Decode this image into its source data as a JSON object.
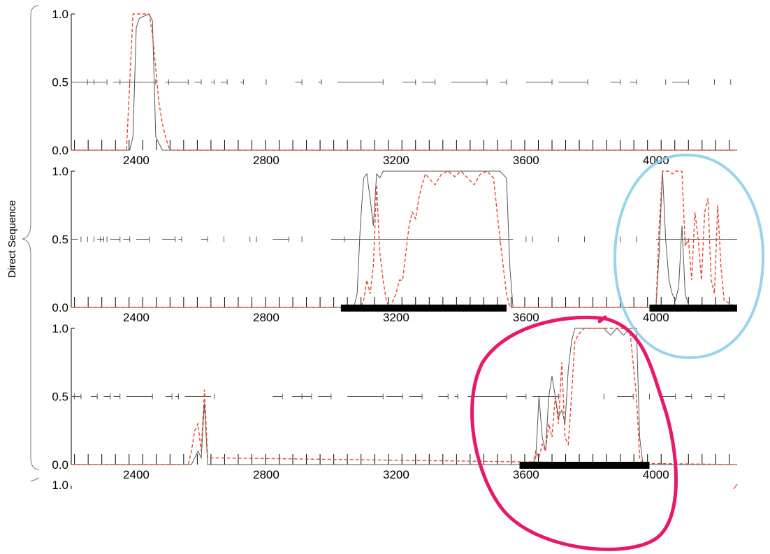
{
  "group_label": "Direct Sequence",
  "annotation_colors": {
    "blue_circle": "#87cdea",
    "pink_circle": "#e8186a"
  },
  "chart_data": [
    {
      "type": "line",
      "xlim": [
        2200,
        4250
      ],
      "ylim": [
        0,
        1
      ],
      "x_ticks": [
        2400,
        2800,
        3200,
        3600,
        4000
      ],
      "y_ticks": [
        0.0,
        0.5,
        1.0
      ],
      "y_tick_labels": [
        "0.0",
        "0.5",
        "1.0"
      ],
      "grid": false,
      "series": [
        {
          "style": "solid",
          "color": "#555555",
          "x": [
            2200,
            2380,
            2390,
            2400,
            2410,
            2420,
            2440,
            2450,
            2460,
            2480,
            4250
          ],
          "y": [
            0,
            0,
            0.1,
            0.9,
            0.97,
            0.98,
            1.0,
            0.95,
            0.1,
            0,
            0
          ]
        },
        {
          "style": "dashed",
          "color": "#e34a33",
          "x": [
            2200,
            2370,
            2380,
            2390,
            2400,
            2420,
            2440,
            2450,
            2460,
            2470,
            2480,
            2490,
            2500,
            2510,
            4250
          ],
          "y": [
            0,
            0,
            0.5,
            1.0,
            1.0,
            1.0,
            1.0,
            0.85,
            0.6,
            0.35,
            0.2,
            0.1,
            0.02,
            0,
            0
          ]
        }
      ],
      "segments": [
        [
          2200,
          2310
        ],
        [
          2330,
          2460
        ],
        [
          2490,
          2560
        ],
        [
          2580,
          2600
        ],
        [
          2630,
          2640
        ],
        [
          2660,
          2680
        ],
        [
          2720,
          2730
        ],
        [
          2890,
          2910
        ],
        [
          2960,
          2970
        ],
        [
          3020,
          3160
        ],
        [
          3220,
          3260
        ],
        [
          3280,
          3320
        ],
        [
          3370,
          3480
        ],
        [
          3520,
          3540
        ],
        [
          3600,
          3680
        ],
        [
          3700,
          3790
        ],
        [
          3860,
          3890
        ],
        [
          3920,
          3940
        ],
        [
          4050,
          4100
        ]
      ],
      "ticks_at": [
        2250,
        2270,
        2310,
        2350,
        2380,
        2460,
        2500,
        2560,
        2600,
        2640,
        2680,
        2730,
        2800,
        2910,
        2970,
        3160,
        3260,
        3320,
        3480,
        3540,
        3680,
        3790,
        3890,
        3940,
        4030,
        4100,
        4180,
        4230
      ],
      "bars": []
    },
    {
      "type": "line",
      "xlim": [
        2200,
        4250
      ],
      "ylim": [
        0,
        1
      ],
      "x_ticks": [
        2400,
        2800,
        3200,
        3600,
        4000
      ],
      "y_ticks": [
        0.0,
        0.5,
        1.0
      ],
      "y_tick_labels": [
        "0.0",
        "0.5",
        "1.0"
      ],
      "grid": false,
      "series": [
        {
          "style": "solid",
          "color": "#555555",
          "x": [
            2200,
            3070,
            3080,
            3090,
            3100,
            3110,
            3120,
            3130,
            3140,
            3150,
            3160,
            3180,
            3200,
            3250,
            3300,
            3350,
            3400,
            3450,
            3500,
            3520,
            3540,
            3550,
            3560,
            4000,
            4010,
            4020,
            4030,
            4040,
            4050,
            4060,
            4070,
            4080,
            4090,
            4100,
            4110,
            4250
          ],
          "y": [
            0,
            0,
            0.1,
            0.6,
            0.95,
            0.98,
            0.8,
            0.6,
            0.98,
            0.95,
            1.0,
            1.0,
            1.0,
            1.0,
            1.0,
            1.0,
            1.0,
            1.0,
            1.0,
            1.0,
            0.95,
            0.3,
            0,
            0,
            0.4,
            1.0,
            0.5,
            0.2,
            0.1,
            0.05,
            0.15,
            0.6,
            0.1,
            0.02,
            0,
            0
          ]
        },
        {
          "style": "dashed",
          "color": "#e34a33",
          "x": [
            2200,
            3090,
            3100,
            3110,
            3120,
            3130,
            3140,
            3150,
            3160,
            3170,
            3180,
            3200,
            3210,
            3220,
            3240,
            3250,
            3260,
            3270,
            3280,
            3290,
            3300,
            3320,
            3340,
            3360,
            3380,
            3400,
            3420,
            3440,
            3460,
            3480,
            3500,
            3520,
            3540,
            3550,
            3560,
            4000,
            4010,
            4020,
            4040,
            4050,
            4060,
            4080,
            4090,
            4100,
            4110,
            4120,
            4130,
            4140,
            4150,
            4160,
            4170,
            4180,
            4190,
            4200,
            4210,
            4250
          ],
          "y": [
            0,
            0,
            0.05,
            0.2,
            0.1,
            0.3,
            0.9,
            0.4,
            0.2,
            0.05,
            0,
            0.1,
            0.2,
            0.2,
            0.6,
            0.7,
            0.65,
            0.8,
            0.9,
            0.98,
            0.95,
            0.9,
            0.98,
            1.0,
            0.96,
            1.0,
            0.95,
            0.9,
            0.98,
            1.0,
            0.95,
            0.5,
            0.1,
            0,
            0,
            0,
            0.6,
            1.0,
            1.0,
            0.98,
            1.0,
            1.0,
            0.45,
            0.5,
            0.2,
            0.7,
            0.5,
            0.2,
            0.7,
            0.8,
            0.2,
            0.1,
            0.75,
            0.3,
            0.05,
            0
          ]
        }
      ],
      "segments": [
        [
          2200,
          2220
        ],
        [
          2280,
          2300
        ],
        [
          2320,
          2350
        ],
        [
          2360,
          2380
        ],
        [
          2400,
          2440
        ],
        [
          2480,
          2520
        ],
        [
          2530,
          2540
        ],
        [
          2600,
          2620
        ],
        [
          2820,
          2870
        ],
        [
          3000,
          3560
        ],
        [
          4000,
          4250
        ]
      ],
      "ticks_at": [
        2230,
        2250,
        2270,
        2290,
        2300,
        2310,
        2350,
        2380,
        2440,
        2520,
        2540,
        2620,
        2670,
        2750,
        2770,
        2870,
        2910,
        3040,
        3520,
        3600,
        3620,
        3700,
        3780,
        3890,
        3940,
        4090
      ],
      "bars": [
        [
          3030,
          3540
        ],
        [
          3980,
          4250
        ]
      ]
    },
    {
      "type": "line",
      "xlim": [
        2200,
        4250
      ],
      "ylim": [
        0,
        1
      ],
      "x_ticks": [
        2400,
        2800,
        3200,
        3600,
        4000
      ],
      "y_ticks": [
        0.0,
        0.5,
        1.0
      ],
      "y_tick_labels": [
        "0.0",
        "0.5",
        "1.0"
      ],
      "grid": false,
      "series": [
        {
          "style": "solid",
          "color": "#555555",
          "x": [
            2200,
            2570,
            2580,
            2590,
            2600,
            2610,
            2620,
            4250
          ],
          "y": [
            0,
            0,
            0.05,
            0.1,
            0.05,
            0.45,
            0,
            0
          ]
        },
        {
          "style": "dashed",
          "color": "#e34a33",
          "x": [
            2200,
            2560,
            2570,
            2580,
            2590,
            2600,
            2610,
            2620,
            4250
          ],
          "y": [
            0,
            0,
            0.1,
            0.25,
            0.3,
            0.1,
            0.55,
            0.05,
            0
          ]
        },
        {
          "style": "solid",
          "color": "#555555",
          "x": [
            3620,
            3630,
            3640,
            3650,
            3660,
            3670,
            3680,
            3690,
            3700,
            3710,
            3720,
            3730,
            3740,
            3750,
            3760,
            3780,
            3800,
            3820,
            3840,
            3860,
            3880,
            3900,
            3920,
            3940,
            3950,
            3960
          ],
          "y": [
            0,
            0.05,
            0.5,
            0.2,
            0.1,
            0.5,
            0.65,
            0.5,
            0.35,
            0.4,
            0.3,
            0.7,
            0.9,
            1.0,
            1.0,
            1.0,
            1.0,
            1.0,
            1.0,
            0.95,
            1.0,
            0.95,
            1.0,
            1.0,
            0.2,
            0
          ]
        },
        {
          "style": "dashed",
          "color": "#e34a33",
          "x": [
            3620,
            3630,
            3640,
            3650,
            3660,
            3670,
            3680,
            3690,
            3700,
            3710,
            3720,
            3730,
            3740,
            3750,
            3760,
            3770,
            3780,
            3800,
            3820,
            3840,
            3860,
            3880,
            3900,
            3920,
            3940,
            3950,
            3960
          ],
          "y": [
            0,
            0.1,
            0.05,
            0.15,
            0.1,
            0.3,
            0.2,
            0.5,
            0.3,
            0.75,
            0.2,
            0.15,
            0.5,
            0.9,
            0.95,
            0.98,
            1.0,
            1.0,
            1.0,
            1.0,
            1.0,
            1.0,
            1.0,
            0.98,
            0.5,
            0.05,
            0
          ]
        }
      ],
      "segments": [
        [
          2200,
          2230
        ],
        [
          2260,
          2280
        ],
        [
          2300,
          2320
        ],
        [
          2330,
          2350
        ],
        [
          2370,
          2450
        ],
        [
          2490,
          2510
        ],
        [
          2520,
          2530
        ],
        [
          2550,
          2630
        ],
        [
          2820,
          2850
        ],
        [
          2880,
          2940
        ],
        [
          2960,
          3000
        ],
        [
          3050,
          3160
        ],
        [
          3170,
          3220
        ],
        [
          3240,
          3280
        ],
        [
          3330,
          3360
        ],
        [
          3380,
          3390
        ],
        [
          3420,
          3540
        ],
        [
          3570,
          3600
        ],
        [
          3620,
          3700
        ],
        [
          3880,
          3930
        ],
        [
          4010,
          4060
        ],
        [
          4090,
          4110
        ],
        [
          4150,
          4170
        ],
        [
          4190,
          4210
        ]
      ],
      "ticks_at": [
        2210,
        2230,
        2280,
        2320,
        2350,
        2450,
        2510,
        2530,
        2640,
        2850,
        2910,
        2940,
        3000,
        3160,
        3220,
        3280,
        3360,
        3390,
        3540,
        3600,
        3700,
        3840,
        3930,
        3980,
        4060,
        4110,
        4170,
        4210
      ],
      "bars": [
        [
          3580,
          3980
        ]
      ]
    }
  ],
  "partial_panel": {
    "visible_y_tick_label": "1.0"
  }
}
